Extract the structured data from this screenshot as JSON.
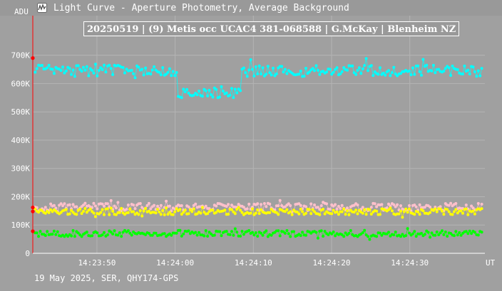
{
  "window": {
    "title": "Light Curve - Aperture Photometry, Average Background",
    "icon": "light-curve-app-icon"
  },
  "footer": {
    "text": "19 May 2025, SER, QHY174-GPS"
  },
  "colors": {
    "background": "#a0a0a0",
    "grid": "#b4b4b4",
    "target": "#00ffff",
    "comparison_1": "#ffc0cb",
    "comparison_2": "#ffff00",
    "comparison_3": "#00ff00",
    "marker": "#ff0000"
  },
  "chart_data": {
    "type": "scatter",
    "title": "20250519 | (9) Metis occ UCAC4 381-068588 | G.McKay | Blenheim NZ",
    "ylabel": "ADU",
    "xlabel": "UT",
    "ylim": [
      0,
      840000
    ],
    "y_ticks": [
      {
        "value": 0,
        "label": "0"
      },
      {
        "value": 100000,
        "label": "100K"
      },
      {
        "value": 200000,
        "label": "200K"
      },
      {
        "value": 300000,
        "label": "300K"
      },
      {
        "value": 400000,
        "label": "400K"
      },
      {
        "value": 500000,
        "label": "500K"
      },
      {
        "value": 600000,
        "label": "600K"
      },
      {
        "value": 700000,
        "label": "700K"
      }
    ],
    "x_ticks": [
      "14:23:50",
      "14:24:00",
      "14:24:10",
      "14:24:20",
      "14:24:30"
    ],
    "x_tick_seconds": [
      50,
      60,
      70,
      80,
      90
    ],
    "xlim_seconds": [
      41.8,
      99.6
    ],
    "occultation_seconds": [
      60.2,
      68.5
    ],
    "left_markers": [
      {
        "value": 690000,
        "series": "target"
      },
      {
        "value": 162000,
        "series": "comparison_1"
      },
      {
        "value": 148000,
        "series": "comparison_2"
      },
      {
        "value": 78000,
        "series": "comparison_3"
      }
    ],
    "series": [
      {
        "key": "target",
        "color": "#00ffff",
        "base": 645000,
        "base_occulted": 570000,
        "jitter": 20000,
        "spike": 30000,
        "stroke": 0.9
      },
      {
        "key": "comparison_1",
        "color": "#ffc0cb",
        "base": 163000,
        "base_occulted": 163000,
        "jitter": 14000,
        "spike": 22000,
        "stroke": 0.8
      },
      {
        "key": "comparison_2",
        "color": "#ffff00",
        "base": 147000,
        "base_occulted": 147000,
        "jitter": 11000,
        "spike": 14000,
        "stroke": 0.8
      },
      {
        "key": "comparison_3",
        "color": "#00ff00",
        "base": 70000,
        "base_occulted": 70000,
        "jitter": 11000,
        "spike": 12000,
        "stroke": 0.8
      }
    ],
    "point_count": 260,
    "grid": true
  }
}
